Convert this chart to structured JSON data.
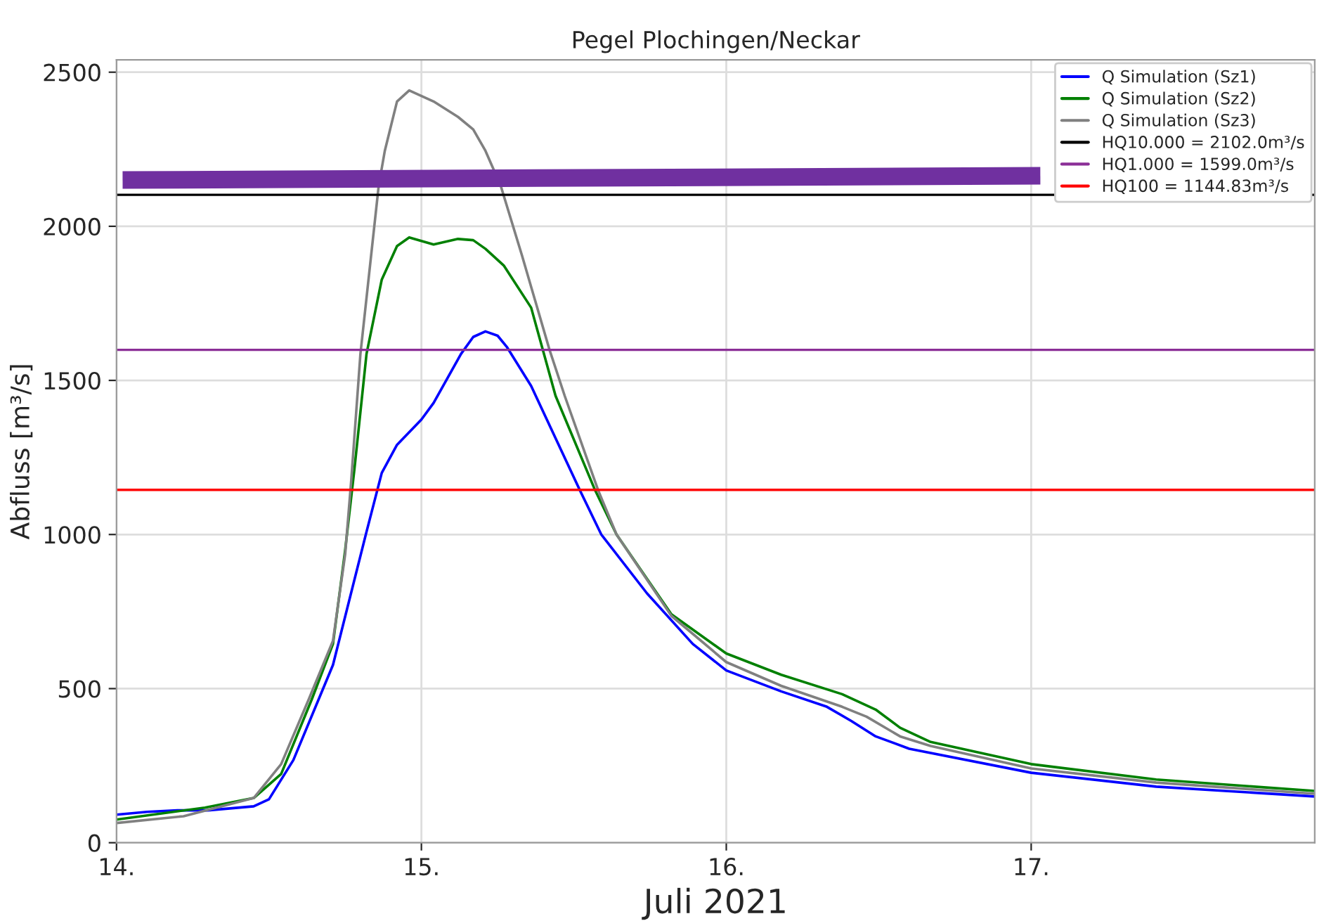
{
  "chart_data": {
    "type": "line",
    "title": "Pegel Plochingen/Neckar",
    "xlabel": "Juli 2021",
    "ylabel": "Abfluss [m³/s]",
    "xlim": [
      14,
      17.93
    ],
    "xticks": [
      {
        "value": 14,
        "label": "14."
      },
      {
        "value": 15,
        "label": "15."
      },
      {
        "value": 16,
        "label": "16."
      },
      {
        "value": 17,
        "label": "17."
      }
    ],
    "ylim": [
      0,
      2540
    ],
    "yticks": [
      0,
      500,
      1000,
      1500,
      2000,
      2500
    ],
    "grid": true,
    "legend": "top right",
    "series": [
      {
        "name": "Q Simulation (Sz1)",
        "color": "#0000ff",
        "x": [
          14.0,
          14.1,
          14.2,
          14.3,
          14.45,
          14.5,
          14.58,
          14.71,
          14.82,
          14.87,
          14.92,
          15.0,
          15.04,
          15.13,
          15.17,
          15.21,
          15.25,
          15.28,
          15.36,
          15.52,
          15.59,
          15.74,
          15.89,
          16.0,
          16.18,
          16.33,
          16.41,
          16.49,
          16.6,
          17.0,
          17.41,
          17.93
        ],
        "values": [
          91,
          100,
          105,
          105,
          118,
          141,
          268,
          577,
          1009,
          1200,
          1291,
          1373,
          1427,
          1586,
          1641,
          1659,
          1645,
          1609,
          1482,
          1143,
          1000,
          809,
          645,
          559,
          491,
          441,
          395,
          345,
          305,
          227,
          182,
          150
        ]
      },
      {
        "name": "Q Simulation (Sz2)",
        "color": "#008000",
        "x": [
          14.0,
          14.29,
          14.45,
          14.54,
          14.64,
          14.71,
          14.75,
          14.78,
          14.82,
          14.87,
          14.92,
          14.96,
          15.04,
          15.12,
          15.17,
          15.21,
          15.27,
          15.36,
          15.44,
          15.57,
          15.64,
          15.82,
          16.0,
          16.18,
          16.38,
          16.49,
          16.57,
          16.67,
          17.0,
          17.41,
          17.93
        ],
        "values": [
          75,
          114,
          145,
          223,
          464,
          645,
          950,
          1209,
          1586,
          1827,
          1936,
          1964,
          1941,
          1959,
          1955,
          1927,
          1873,
          1736,
          1450,
          1143,
          1000,
          741,
          614,
          545,
          482,
          432,
          373,
          327,
          255,
          205,
          168
        ]
      },
      {
        "name": "Q Simulation (Sz3)",
        "color": "#808080",
        "x": [
          14.0,
          14.22,
          14.45,
          14.54,
          14.63,
          14.71,
          14.75,
          14.77,
          14.8,
          14.86,
          14.88,
          14.92,
          14.96,
          15.04,
          15.12,
          15.17,
          15.21,
          15.26,
          15.33,
          15.42,
          15.47,
          15.58,
          15.64,
          15.82,
          16.0,
          16.18,
          16.38,
          16.46,
          16.57,
          16.67,
          17.0,
          17.41,
          17.93
        ],
        "values": [
          64,
          86,
          145,
          255,
          464,
          655,
          936,
          1177,
          1586,
          2132,
          2245,
          2405,
          2441,
          2405,
          2355,
          2314,
          2245,
          2132,
          1905,
          1600,
          1450,
          1143,
          1000,
          736,
          586,
          509,
          441,
          409,
          345,
          314,
          241,
          195,
          159
        ]
      },
      {
        "color": "#7030a0",
        "x": [
          14.02,
          17.03
        ],
        "values": [
          2150,
          2164
        ]
      }
    ],
    "ref_lines": [
      {
        "axis": "y",
        "value": 2102.0,
        "label": "HQ10.000 = 2102.0m³/s",
        "color": "#000000"
      },
      {
        "axis": "y",
        "value": 1599.0,
        "label": "HQ1.000 = 1599.0m³/s",
        "color": "#8b2f97"
      },
      {
        "axis": "y",
        "value": 1144.83,
        "label": "HQ100 = 1144.83m³/s",
        "color": "#ff0000"
      }
    ]
  }
}
